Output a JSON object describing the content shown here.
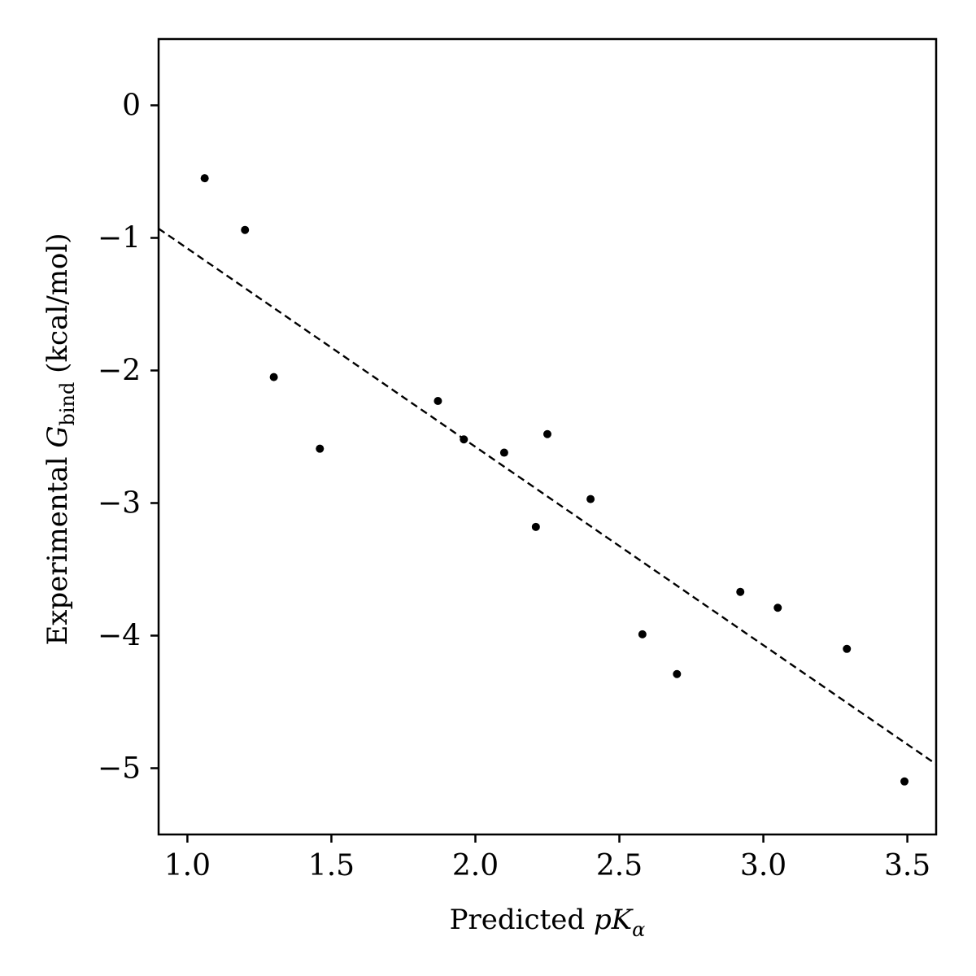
{
  "chart_data": {
    "type": "scatter",
    "title": "",
    "xlabel": {
      "prefix": "Predicted ",
      "symbol": "pK",
      "subscript": "α"
    },
    "ylabel": {
      "prefix": "Experimental ",
      "symbol": "G",
      "subscript": "bind",
      "suffix": " (kcal/mol)"
    },
    "xlim": [
      0.9,
      3.6
    ],
    "ylim": [
      -5.5,
      0.5
    ],
    "xticks": [
      1.0,
      1.5,
      2.0,
      2.5,
      3.0,
      3.5
    ],
    "xtick_labels": [
      "1.0",
      "1.5",
      "2.0",
      "2.5",
      "3.0",
      "3.5"
    ],
    "yticks": [
      0,
      -1,
      -2,
      -3,
      -4,
      -5
    ],
    "ytick_labels": [
      "0",
      "−1",
      "−2",
      "−3",
      "−4",
      "−5"
    ],
    "grid": false,
    "points": {
      "x": [
        1.06,
        1.2,
        1.3,
        1.46,
        1.87,
        1.96,
        2.1,
        2.21,
        2.25,
        2.4,
        2.58,
        2.7,
        2.92,
        3.05,
        3.29,
        3.49
      ],
      "y": [
        -0.55,
        -0.94,
        -2.05,
        -2.59,
        -2.23,
        -2.52,
        -2.62,
        -3.18,
        -2.48,
        -2.97,
        -3.99,
        -4.29,
        -3.67,
        -3.79,
        -4.1,
        -5.1
      ]
    },
    "fit_line": {
      "style": "dashed",
      "x": [
        0.9,
        3.6
      ],
      "y": [
        -0.93,
        -4.97
      ]
    },
    "colors": {
      "points": "#000000",
      "line": "#000000",
      "axes": "#000000"
    }
  }
}
